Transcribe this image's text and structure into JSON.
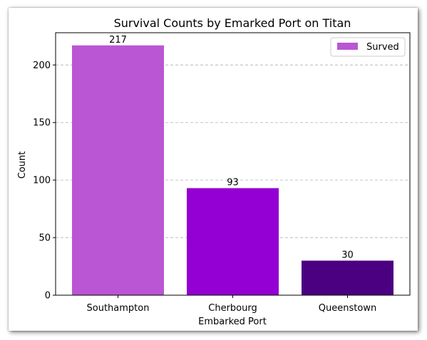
{
  "chart_data": {
    "type": "bar",
    "title": "Survival Counts by Emarked Port on Titan",
    "xlabel": "Embarked Port",
    "ylabel": "Count",
    "categories": [
      "Southampton",
      "Cherbourg",
      "Queenstown"
    ],
    "series": [
      {
        "name": "Surved",
        "values": [
          217,
          93,
          30
        ],
        "colors": [
          "#ba55d3",
          "#9400d3",
          "#4b0082"
        ]
      }
    ],
    "data_labels": [
      "217",
      "93",
      "30"
    ],
    "yticks": [
      0,
      50,
      100,
      150,
      200
    ],
    "ylim": [
      0,
      228
    ],
    "grid": "y-dashed",
    "legend_position": "top-right",
    "legend_color": "#ba55d3"
  }
}
